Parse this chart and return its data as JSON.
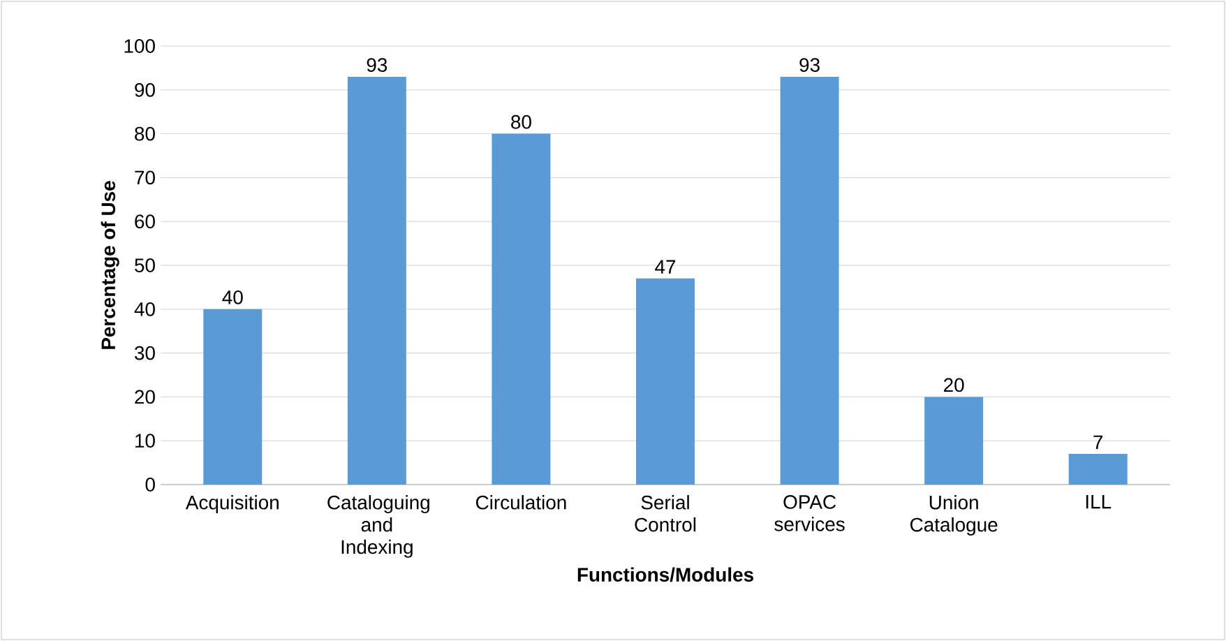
{
  "chart_data": {
    "type": "bar",
    "xlabel": "Functions/Modules",
    "ylabel": "Percentage of Use",
    "categories": [
      "Acquisition",
      "Cataloguing and Indexing",
      "Circulation",
      "Serial Control",
      "OPAC services",
      "Union Catalogue",
      "ILL"
    ],
    "values": [
      40,
      93,
      80,
      47,
      93,
      20,
      7
    ],
    "color": "#5b9bd5",
    "ylim": [
      0,
      100
    ],
    "yticks": [
      0,
      10,
      20,
      30,
      40,
      50,
      60,
      70,
      80,
      90,
      100
    ],
    "grid": "y",
    "data_labels": true
  }
}
